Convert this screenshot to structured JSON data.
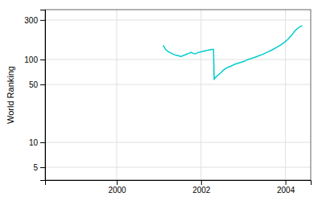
{
  "chart_data": {
    "type": "line",
    "ylabel": "World Ranking",
    "x": [
      2001.1,
      2001.13,
      2001.16,
      2001.19,
      2001.22,
      2001.25,
      2001.28,
      2001.31,
      2001.34,
      2001.37,
      2001.4,
      2001.43,
      2001.46,
      2001.49,
      2001.52,
      2001.55,
      2001.58,
      2001.61,
      2001.64,
      2001.67,
      2001.7,
      2001.73,
      2001.76,
      2001.79,
      2001.82,
      2001.85,
      2001.88,
      2001.91,
      2001.94,
      2001.97,
      2002.0,
      2002.03,
      2002.06,
      2002.09,
      2002.12,
      2002.15,
      2002.18,
      2002.21,
      2002.24,
      2002.27,
      2002.295,
      2002.31,
      2002.33,
      2002.36,
      2002.39,
      2002.42,
      2002.45,
      2002.48,
      2002.51,
      2002.54,
      2002.57,
      2002.6,
      2002.63,
      2002.66,
      2002.69,
      2002.72,
      2002.75,
      2002.78,
      2002.81,
      2002.84,
      2002.87,
      2002.9,
      2002.93,
      2002.96,
      2002.99,
      2003.02,
      2003.05,
      2003.08,
      2003.11,
      2003.14,
      2003.17,
      2003.2,
      2003.23,
      2003.26,
      2003.29,
      2003.32,
      2003.35,
      2003.38,
      2003.41,
      2003.44,
      2003.47,
      2003.5,
      2003.53,
      2003.56,
      2003.59,
      2003.62,
      2003.65,
      2003.68,
      2003.71,
      2003.74,
      2003.77,
      2003.8,
      2003.83,
      2003.86,
      2003.89,
      2003.92,
      2003.95,
      2003.98,
      2004.01,
      2004.04,
      2004.07,
      2004.1,
      2004.13,
      2004.16,
      2004.19,
      2004.22,
      2004.25,
      2004.28,
      2004.31,
      2004.34,
      2004.37,
      2004.4
    ],
    "values": [
      148,
      140,
      132,
      128,
      125,
      122,
      120,
      118,
      116,
      114,
      113,
      112,
      111,
      110,
      109,
      110,
      112,
      113,
      115,
      117,
      118,
      120,
      122,
      120,
      118,
      117,
      118,
      120,
      122,
      123,
      124,
      125,
      126,
      127,
      128,
      129,
      130,
      131,
      132,
      132,
      132,
      57,
      60,
      62,
      64,
      66,
      68,
      70,
      73,
      75,
      77,
      79,
      80,
      82,
      82,
      84,
      85,
      87,
      88,
      89,
      90,
      91,
      92,
      93,
      94,
      95,
      97,
      98,
      100,
      101,
      102,
      103,
      105,
      106,
      107,
      108,
      110,
      112,
      113,
      114,
      116,
      118,
      120,
      122,
      124,
      126,
      128,
      130,
      133,
      136,
      138,
      141,
      144,
      147,
      150,
      154,
      158,
      162,
      167,
      172,
      178,
      185,
      192,
      200,
      210,
      220,
      228,
      235,
      242,
      248,
      252,
      256
    ],
    "color": "#00cccc",
    "xlim": [
      1998.3,
      2004.6
    ],
    "ylim": [
      3.5,
      400
    ],
    "xticks": [
      2000,
      2002,
      2004
    ],
    "yticks": [
      5,
      10,
      50,
      100,
      300
    ],
    "log": "y",
    "grid": true
  }
}
